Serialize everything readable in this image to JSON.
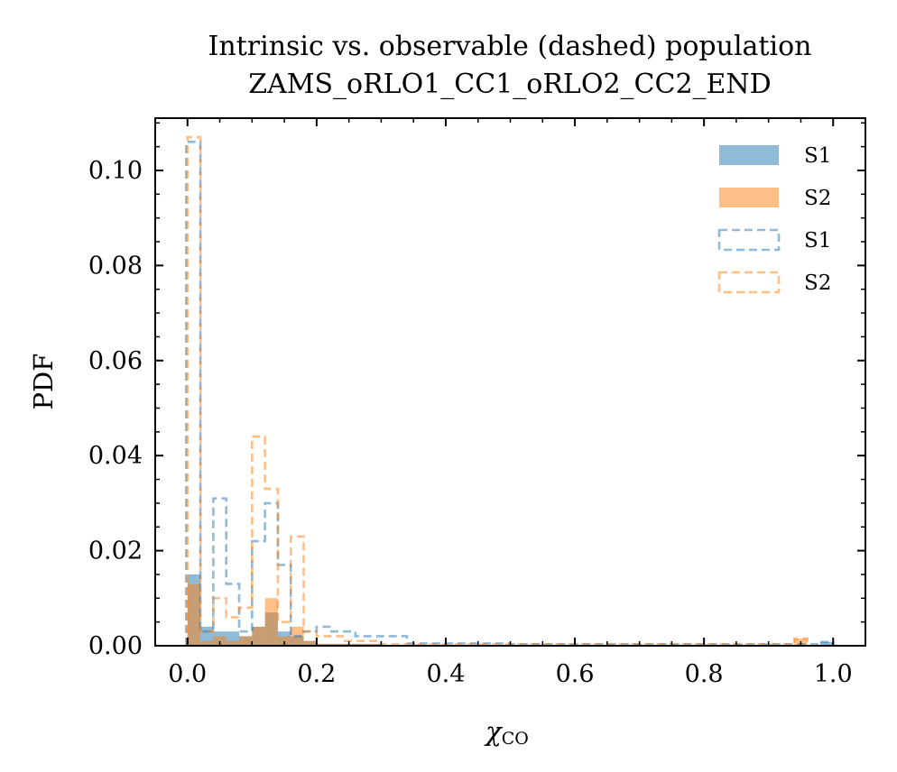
{
  "chart_data": {
    "type": "histogram",
    "title": "Intrinsic vs. observable (dashed) population",
    "subtitle": "ZAMS_oRLO1_CC1_oRLO2_CC2_END",
    "xlabel": "χ",
    "xlabel_sub": "CO",
    "ylabel": "PDF",
    "xlim": [
      -0.05,
      1.05
    ],
    "ylim": [
      0,
      0.111
    ],
    "xticks": [
      "0.0",
      "0.2",
      "0.4",
      "0.6",
      "0.8",
      "1.0"
    ],
    "xtick_values": [
      0.0,
      0.2,
      0.4,
      0.6,
      0.8,
      1.0
    ],
    "yticks": [
      "0.00",
      "0.02",
      "0.04",
      "0.06",
      "0.08",
      "0.10"
    ],
    "ytick_values": [
      0.0,
      0.02,
      0.04,
      0.06,
      0.08,
      0.1
    ],
    "grid": false,
    "legend_position": "top-right",
    "colors": {
      "S1": "#1f77b4",
      "S2": "#ff7f0e"
    },
    "series": [
      {
        "name": "S1",
        "style": "filled",
        "color": "#1f77b4",
        "bins": [
          {
            "x0": 0.0,
            "x1": 0.02,
            "y": 0.015
          },
          {
            "x0": 0.02,
            "x1": 0.04,
            "y": 0.004
          },
          {
            "x0": 0.04,
            "x1": 0.06,
            "y": 0.003
          },
          {
            "x0": 0.06,
            "x1": 0.08,
            "y": 0.003
          },
          {
            "x0": 0.08,
            "x1": 0.1,
            "y": 0.002
          },
          {
            "x0": 0.1,
            "x1": 0.12,
            "y": 0.004
          },
          {
            "x0": 0.12,
            "x1": 0.14,
            "y": 0.007
          },
          {
            "x0": 0.14,
            "x1": 0.16,
            "y": 0.003
          },
          {
            "x0": 0.16,
            "x1": 0.18,
            "y": 0.002
          },
          {
            "x0": 0.18,
            "x1": 0.2,
            "y": 0.001
          },
          {
            "x0": 0.2,
            "x1": 0.3,
            "y": 0.0004
          },
          {
            "x0": 0.98,
            "x1": 1.0,
            "y": 0.0008
          }
        ]
      },
      {
        "name": "S2",
        "style": "filled",
        "color": "#ff7f0e",
        "bins": [
          {
            "x0": 0.0,
            "x1": 0.02,
            "y": 0.013
          },
          {
            "x0": 0.02,
            "x1": 0.04,
            "y": 0.001
          },
          {
            "x0": 0.04,
            "x1": 0.06,
            "y": 0.002
          },
          {
            "x0": 0.06,
            "x1": 0.08,
            "y": 0.001
          },
          {
            "x0": 0.08,
            "x1": 0.1,
            "y": 0.002
          },
          {
            "x0": 0.1,
            "x1": 0.12,
            "y": 0.004
          },
          {
            "x0": 0.12,
            "x1": 0.14,
            "y": 0.01
          },
          {
            "x0": 0.14,
            "x1": 0.16,
            "y": 0.002
          },
          {
            "x0": 0.16,
            "x1": 0.18,
            "y": 0.004
          },
          {
            "x0": 0.18,
            "x1": 0.2,
            "y": 0.001
          },
          {
            "x0": 0.2,
            "x1": 0.3,
            "y": 0.0004
          },
          {
            "x0": 0.94,
            "x1": 0.96,
            "y": 0.0015
          }
        ]
      },
      {
        "name": "S1",
        "style": "dashed",
        "color": "#1f77b4",
        "bins": [
          {
            "x0": -0.002,
            "x1": 0.02,
            "y": 0.106
          },
          {
            "x0": 0.02,
            "x1": 0.04,
            "y": 0.003
          },
          {
            "x0": 0.04,
            "x1": 0.06,
            "y": 0.031
          },
          {
            "x0": 0.06,
            "x1": 0.08,
            "y": 0.013
          },
          {
            "x0": 0.08,
            "x1": 0.1,
            "y": 0.003
          },
          {
            "x0": 0.1,
            "x1": 0.12,
            "y": 0.022
          },
          {
            "x0": 0.12,
            "x1": 0.14,
            "y": 0.03
          },
          {
            "x0": 0.14,
            "x1": 0.16,
            "y": 0.017
          },
          {
            "x0": 0.16,
            "x1": 0.18,
            "y": 0.002
          },
          {
            "x0": 0.18,
            "x1": 0.2,
            "y": 0.003
          },
          {
            "x0": 0.2,
            "x1": 0.22,
            "y": 0.004
          },
          {
            "x0": 0.22,
            "x1": 0.26,
            "y": 0.003
          },
          {
            "x0": 0.26,
            "x1": 0.3,
            "y": 0.002
          },
          {
            "x0": 0.3,
            "x1": 0.34,
            "y": 0.002
          },
          {
            "x0": 0.34,
            "x1": 0.5,
            "y": 0.0005
          },
          {
            "x0": 0.5,
            "x1": 0.98,
            "y": 0.0003
          },
          {
            "x0": 0.98,
            "x1": 1.0,
            "y": 0.0008
          }
        ]
      },
      {
        "name": "S2",
        "style": "dashed",
        "color": "#ff7f0e",
        "bins": [
          {
            "x0": 0.0,
            "x1": 0.02,
            "y": 0.107
          },
          {
            "x0": 0.02,
            "x1": 0.04,
            "y": 0.003
          },
          {
            "x0": 0.04,
            "x1": 0.06,
            "y": 0.01
          },
          {
            "x0": 0.06,
            "x1": 0.08,
            "y": 0.006
          },
          {
            "x0": 0.08,
            "x1": 0.1,
            "y": 0.008
          },
          {
            "x0": 0.1,
            "x1": 0.12,
            "y": 0.044
          },
          {
            "x0": 0.12,
            "x1": 0.14,
            "y": 0.033
          },
          {
            "x0": 0.14,
            "x1": 0.16,
            "y": 0.005
          },
          {
            "x0": 0.16,
            "x1": 0.18,
            "y": 0.023
          },
          {
            "x0": 0.18,
            "x1": 0.2,
            "y": 0.003
          },
          {
            "x0": 0.2,
            "x1": 0.24,
            "y": 0.002
          },
          {
            "x0": 0.24,
            "x1": 0.3,
            "y": 0.001
          },
          {
            "x0": 0.3,
            "x1": 0.94,
            "y": 0.0003
          },
          {
            "x0": 0.94,
            "x1": 0.96,
            "y": 0.0015
          }
        ]
      }
    ],
    "legend": [
      {
        "label": "S1",
        "style": "filled",
        "color": "#1f77b4"
      },
      {
        "label": "S2",
        "style": "filled",
        "color": "#ff7f0e"
      },
      {
        "label": "S1",
        "style": "dashed",
        "color": "#1f77b4"
      },
      {
        "label": "S2",
        "style": "dashed",
        "color": "#ff7f0e"
      }
    ]
  }
}
